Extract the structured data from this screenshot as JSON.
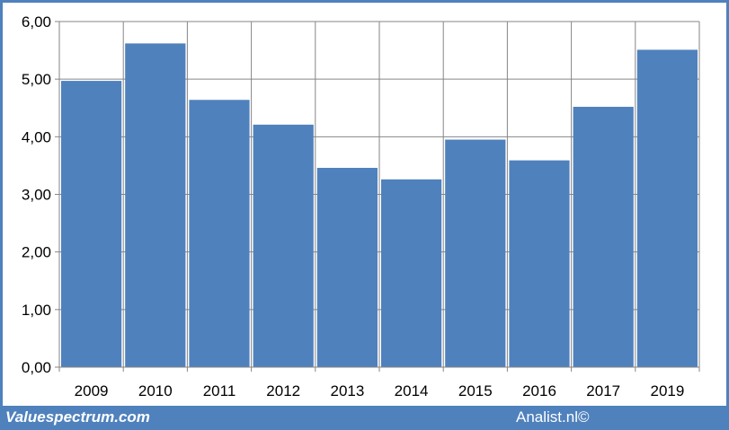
{
  "chart_data": {
    "type": "bar",
    "categories": [
      "2009",
      "2010",
      "2011",
      "2012",
      "2013",
      "2014",
      "2015",
      "2016",
      "2017",
      "2019"
    ],
    "values": [
      4.97,
      5.62,
      4.64,
      4.21,
      3.46,
      3.26,
      3.95,
      3.59,
      4.52,
      5.51
    ],
    "title": "",
    "xlabel": "",
    "ylabel": "",
    "ylim": [
      0,
      6
    ],
    "yticks": [
      "0,00",
      "1,00",
      "2,00",
      "3,00",
      "4,00",
      "5,00",
      "6,00"
    ],
    "grid": "vertical and horizontal",
    "legend": "none",
    "bar_color": "#4f81bd",
    "grid_color": "#868686"
  },
  "footer": {
    "left": "Valuespectrum.com",
    "right": "Analist.nl©",
    "background": "#4f81bd"
  }
}
